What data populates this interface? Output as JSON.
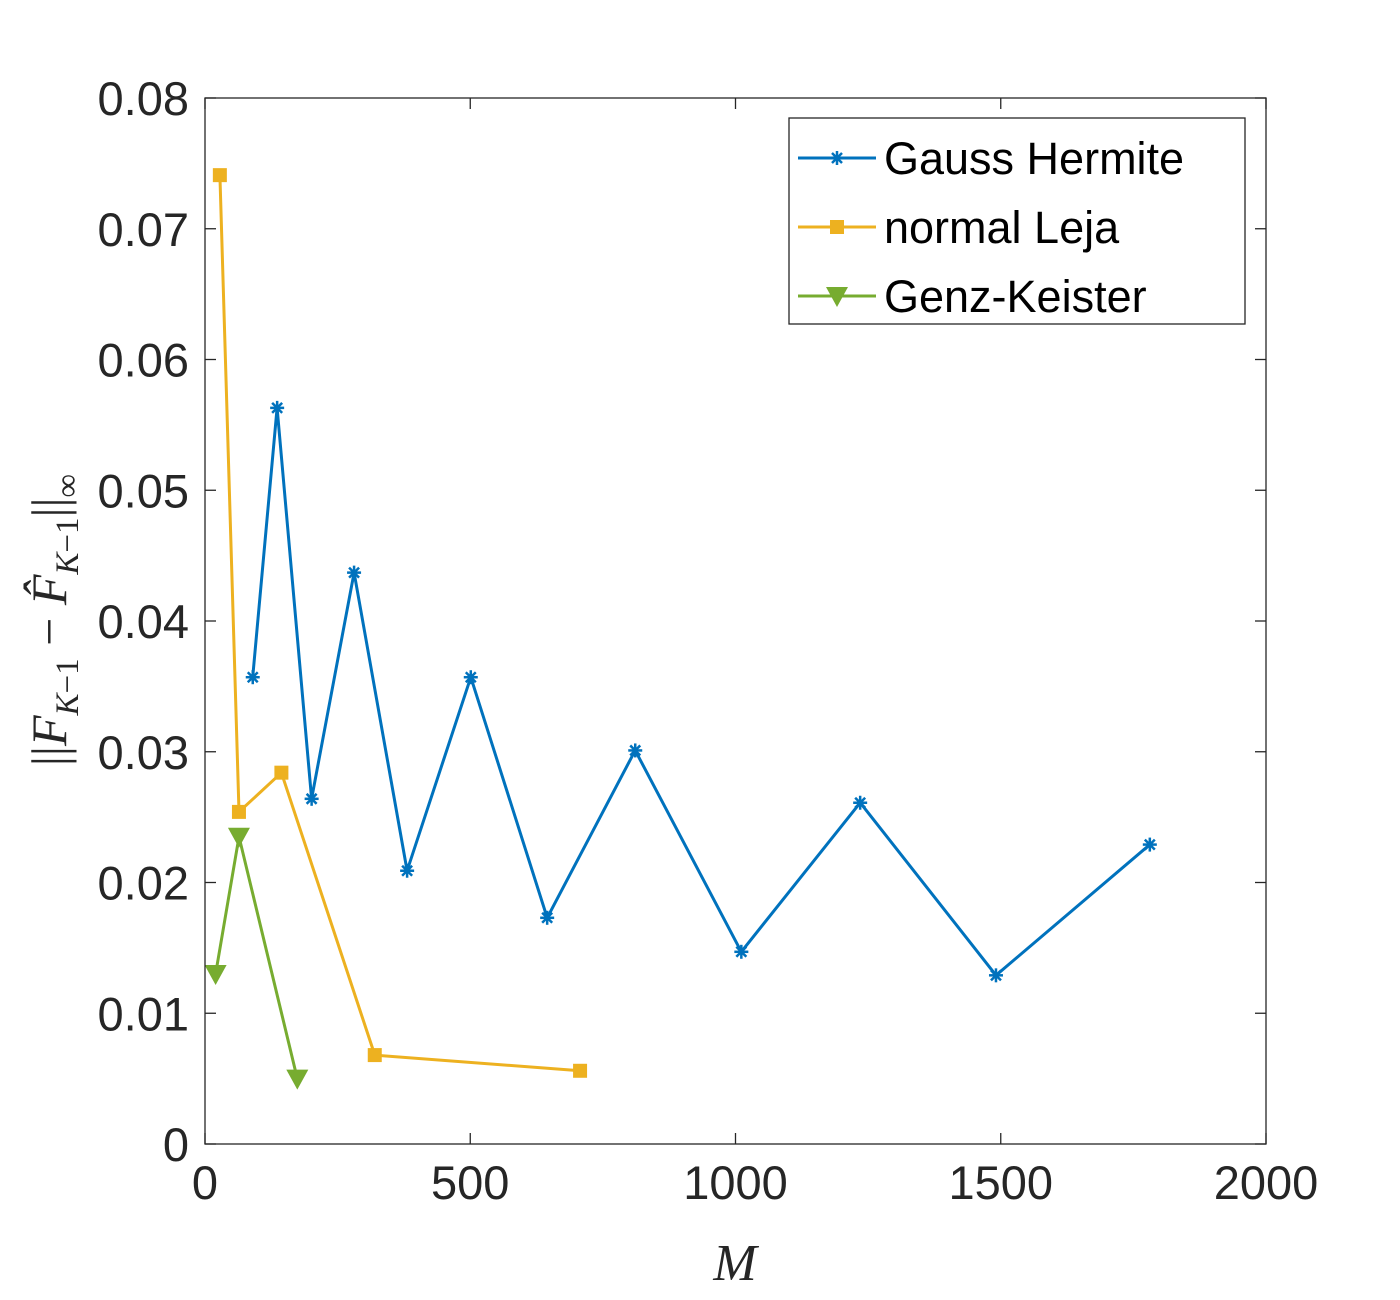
{
  "chart_data": {
    "type": "line",
    "title": "",
    "xlabel": "M",
    "ylabel": "||F_{K-1} − F̂_{K-1}||_∞",
    "xlim": [
      0,
      2000
    ],
    "ylim": [
      0,
      0.08
    ],
    "xticks": [
      0,
      500,
      1000,
      1500,
      2000
    ],
    "yticks": [
      0,
      0.01,
      0.02,
      0.03,
      0.04,
      0.05,
      0.06,
      0.07,
      0.08
    ],
    "xtick_labels": [
      "0",
      "500",
      "1000",
      "1500",
      "2000"
    ],
    "ytick_labels": [
      "0",
      "0.01",
      "0.02",
      "0.03",
      "0.04",
      "0.05",
      "0.06",
      "0.07",
      "0.08"
    ],
    "grid": false,
    "box": true,
    "legend_position": "top-right",
    "series": [
      {
        "name": "Gauss Hermite",
        "color": "#0072BD",
        "marker": "asterisk",
        "x": [
          90,
          136,
          201,
          281,
          381,
          501,
          645,
          811,
          1011,
          1235,
          1491,
          1781
        ],
        "y": [
          0.0357,
          0.0563,
          0.0264,
          0.0437,
          0.0209,
          0.0357,
          0.0173,
          0.0301,
          0.0147,
          0.0261,
          0.0129,
          0.0229
        ]
      },
      {
        "name": "normal Leja",
        "color": "#EDB120",
        "marker": "square",
        "x": [
          28,
          64,
          144,
          320,
          707
        ],
        "y": [
          0.0741,
          0.0254,
          0.0284,
          0.0068,
          0.0056
        ]
      },
      {
        "name": "Genz-Keister",
        "color": "#77AC30",
        "marker": "triangle-down",
        "x": [
          20,
          64,
          174
        ],
        "y": [
          0.013,
          0.0235,
          0.005
        ]
      }
    ]
  }
}
